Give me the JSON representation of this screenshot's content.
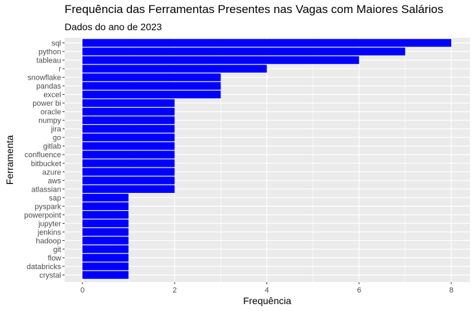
{
  "chart_data": {
    "type": "bar",
    "orientation": "horizontal",
    "title": "Frequência das Ferramentas Presentes nas Vagas com Maiores Salários",
    "subtitle": "Dados do ano de 2023",
    "xlabel": "Frequência",
    "ylabel": "Ferramenta",
    "xlim": [
      0,
      8
    ],
    "xticks": [
      0,
      2,
      4,
      6,
      8
    ],
    "grid": true,
    "bar_color": "#0000FF",
    "panel_color": "#EBEBEB",
    "grid_color": "#FFFFFF",
    "categories": [
      "sql",
      "python",
      "tableau",
      "r",
      "snowflake",
      "pandas",
      "excel",
      "power bi",
      "oracle",
      "numpy",
      "jira",
      "go",
      "gitlab",
      "confluence",
      "bitbucket",
      "azure",
      "aws",
      "atlassian",
      "sap",
      "pyspark",
      "powerpoint",
      "jupyter",
      "jenkins",
      "hadoop",
      "git",
      "flow",
      "databricks",
      "crystal"
    ],
    "values": [
      8,
      7,
      6,
      4,
      3,
      3,
      3,
      2,
      2,
      2,
      2,
      2,
      2,
      2,
      2,
      2,
      2,
      2,
      1,
      1,
      1,
      1,
      1,
      1,
      1,
      1,
      1,
      1
    ]
  }
}
